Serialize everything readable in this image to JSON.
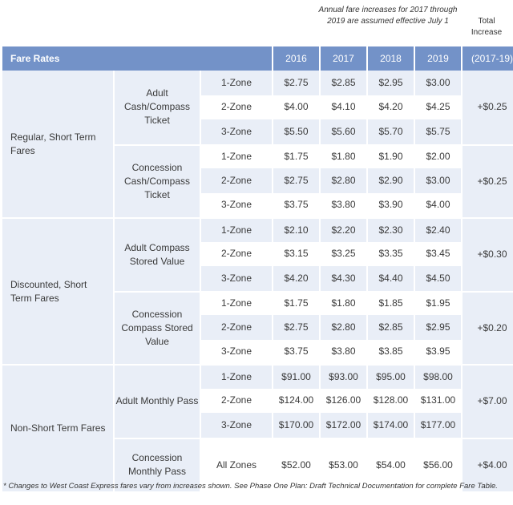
{
  "notes": {
    "annual": "Annual fare increases for 2017 through 2019 are assumed effective July 1",
    "total_header": "Total Increase"
  },
  "header": {
    "title": "Fare Rates",
    "years": [
      "2016",
      "2017",
      "2018",
      "2019"
    ],
    "total": "(2017-19)"
  },
  "groups": [
    {
      "label": "Regular, Short Term Fares"
    },
    {
      "label": "Discounted, Short Term Fares"
    },
    {
      "label": "Non-Short Term Fares"
    }
  ],
  "subgroups": [
    {
      "label": "Adult Cash/Compass Ticket",
      "total": "+$0.25"
    },
    {
      "label": "Concession Cash/Compass Ticket",
      "total": "+$0.25"
    },
    {
      "label": "Adult Compass Stored Value",
      "total": "+$0.30"
    },
    {
      "label": "Concession Compass Stored Value",
      "total": "+$0.20"
    },
    {
      "label": "Adult Monthly Pass",
      "total": "+$7.00"
    },
    {
      "label": "Concession Monthly Pass",
      "total": "+$4.00"
    }
  ],
  "rows": [
    {
      "zone": "1-Zone",
      "v": [
        "$2.75",
        "$2.85",
        "$2.95",
        "$3.00"
      ]
    },
    {
      "zone": "2-Zone",
      "v": [
        "$4.00",
        "$4.10",
        "$4.20",
        "$4.25"
      ]
    },
    {
      "zone": "3-Zone",
      "v": [
        "$5.50",
        "$5.60",
        "$5.70",
        "$5.75"
      ]
    },
    {
      "zone": "1-Zone",
      "v": [
        "$1.75",
        "$1.80",
        "$1.90",
        "$2.00"
      ]
    },
    {
      "zone": "2-Zone",
      "v": [
        "$2.75",
        "$2.80",
        "$2.90",
        "$3.00"
      ]
    },
    {
      "zone": "3-Zone",
      "v": [
        "$3.75",
        "$3.80",
        "$3.90",
        "$4.00"
      ]
    },
    {
      "zone": "1-Zone",
      "v": [
        "$2.10",
        "$2.20",
        "$2.30",
        "$2.40"
      ]
    },
    {
      "zone": "2-Zone",
      "v": [
        "$3.15",
        "$3.25",
        "$3.35",
        "$3.45"
      ]
    },
    {
      "zone": "3-Zone",
      "v": [
        "$4.20",
        "$4.30",
        "$4.40",
        "$4.50"
      ]
    },
    {
      "zone": "1-Zone",
      "v": [
        "$1.75",
        "$1.80",
        "$1.85",
        "$1.95"
      ]
    },
    {
      "zone": "2-Zone",
      "v": [
        "$2.75",
        "$2.80",
        "$2.85",
        "$2.95"
      ]
    },
    {
      "zone": "3-Zone",
      "v": [
        "$3.75",
        "$3.80",
        "$3.85",
        "$3.95"
      ]
    },
    {
      "zone": "1-Zone",
      "v": [
        "$91.00",
        "$93.00",
        "$95.00",
        "$98.00"
      ]
    },
    {
      "zone": "2-Zone",
      "v": [
        "$124.00",
        "$126.00",
        "$128.00",
        "$131.00"
      ]
    },
    {
      "zone": "3-Zone",
      "v": [
        "$170.00",
        "$172.00",
        "$174.00",
        "$177.00"
      ]
    },
    {
      "zone": "All Zones",
      "v": [
        "$52.00",
        "$53.00",
        "$54.00",
        "$56.00"
      ]
    }
  ],
  "footnote": "* Changes to West Coast Express fares vary from increases shown. See Phase One Plan: Draft Technical Documentation for complete Fare Table."
}
